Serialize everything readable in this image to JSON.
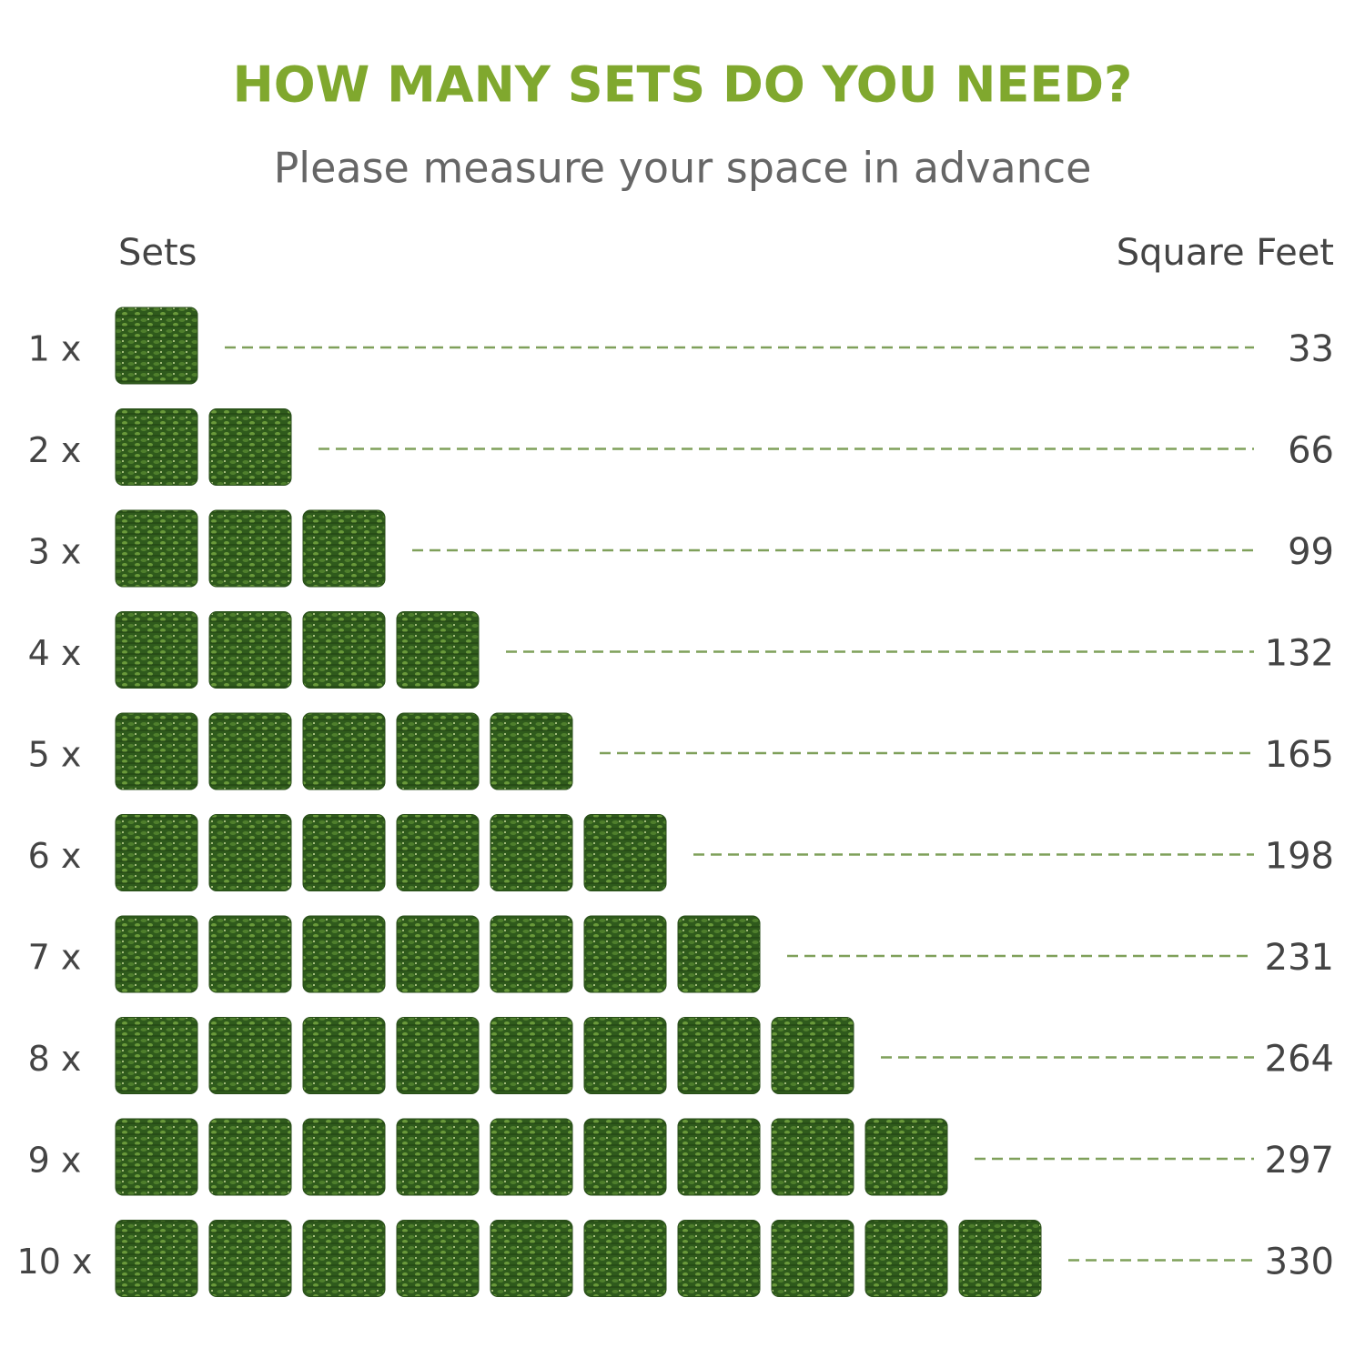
{
  "header": {
    "title": "HOW MANY SETS DO YOU NEED?",
    "subtitle": "Please measure your space in advance"
  },
  "columns": {
    "sets": "Sets",
    "area": "Square Feet"
  },
  "rows": [
    {
      "label": "1 x",
      "value": "33"
    },
    {
      "label": "2 x",
      "value": "66"
    },
    {
      "label": "3 x",
      "value": "99"
    },
    {
      "label": "4 x",
      "value": "132"
    },
    {
      "label": "5 x",
      "value": "165"
    },
    {
      "label": "6 x",
      "value": "198"
    },
    {
      "label": "7 x",
      "value": "231"
    },
    {
      "label": "8 x",
      "value": "264"
    },
    {
      "label": "9 x",
      "value": "297"
    },
    {
      "label": "10 x",
      "value": "330"
    }
  ]
}
